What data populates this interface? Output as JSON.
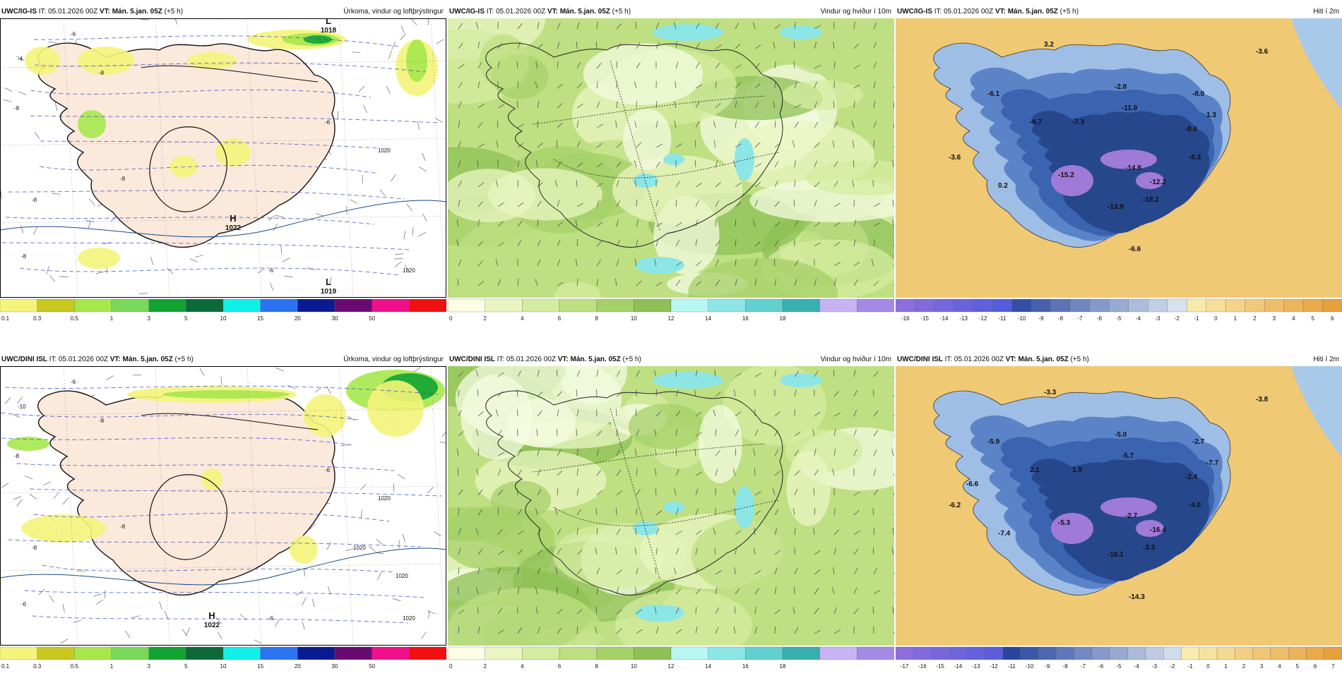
{
  "rows": [
    {
      "model": "UWC/IG-IS",
      "panels": [
        {
          "kind": "precip",
          "it_label": "IT: 05.01.2026 00Z",
          "vt_label": "VT: Mán. 5.jan. 05Z",
          "lead": "(+5 h)",
          "title": "Úrkoma, vindur og loftþrýstingur",
          "centers": [
            {
              "type": "H",
              "value": "1022"
            },
            {
              "type": "L",
              "value": "1018"
            },
            {
              "type": "L",
              "value": "1019"
            }
          ],
          "isobar_labels": [
            "1020",
            "1020"
          ],
          "temp_labels": [
            "-4",
            "-6",
            "-8",
            "-8",
            "-8",
            "-8",
            "-8",
            "-6",
            "-6"
          ],
          "legend_ticks": [
            "0.1",
            "0.3",
            "0.5",
            "1",
            "3",
            "5",
            "10",
            "15",
            "20",
            "30",
            "50"
          ],
          "legend_colors": [
            "#f4f47a",
            "#c8c81e",
            "#a6e84c",
            "#7ad85a",
            "#12a432",
            "#0c6a3a",
            "#10f0e8",
            "#2a74f2",
            "#0a1a90",
            "#6a0a70",
            "#f0108c",
            "#f01010"
          ]
        },
        {
          "kind": "wind",
          "it_label": "IT: 05.01.2026 00Z",
          "vt_label": "VT: Mán. 5.jan. 05Z",
          "lead": "(+5 h)",
          "title": "Vindur og hviður í 10m",
          "legend_ticks": [
            "0",
            "2",
            "4",
            "6",
            "8",
            "10",
            "12",
            "14",
            "16",
            "18"
          ],
          "legend_colors": [
            "#fbfde4",
            "#eaf5c2",
            "#d4eca0",
            "#bedf82",
            "#a6d068",
            "#8ec056",
            "#b8f7f2",
            "#8ce6e6",
            "#62d0d0",
            "#38b0b0",
            "#c8b4f4",
            "#a48ae6"
          ]
        },
        {
          "kind": "temp",
          "it_label": "IT: 05.01.2026 00Z",
          "vt_label": "VT: Mán. 5.jan. 05Z",
          "lead": "(+5 h)",
          "title": "Hiti í 2m",
          "values": [
            "3.2",
            "-3.6",
            "-6.1",
            "-6.7",
            "-7.3",
            "-11.9",
            "-2.8",
            "-8.0",
            "-8.6",
            "1.3",
            "-3.6",
            "0.2",
            "-15.2",
            "-14.8",
            "-12.2",
            "-8.3",
            "-13.9",
            "-18.2",
            "-6.6"
          ],
          "legend_ticks": [
            "-16",
            "-15",
            "-14",
            "-13",
            "-12",
            "-11",
            "-10",
            "-9",
            "-8",
            "-7",
            "-6",
            "-5",
            "-4",
            "-3",
            "-2",
            "-1",
            "0",
            "1",
            "2",
            "3",
            "4",
            "5",
            "6"
          ]
        }
      ]
    },
    {
      "model": "UWC/DINI ISL",
      "panels": [
        {
          "kind": "precip",
          "it_label": "IT: 05.01.2026 00Z",
          "vt_label": "VT: Mán. 5.jan. 05Z",
          "lead": "(+5 h)",
          "title": "Úrkoma, vindur og loftþrýstingur",
          "centers": [
            {
              "type": "H",
              "value": "1022"
            }
          ],
          "isobar_labels": [
            "1020",
            "1020",
            "1020",
            "1020"
          ],
          "temp_labels": [
            "-10",
            "-6",
            "-8",
            "-8",
            "-8",
            "-8",
            "-6",
            "-6",
            "-6"
          ],
          "legend_ticks": [
            "0.1",
            "0.3",
            "0.5",
            "1",
            "3",
            "5",
            "10",
            "15",
            "20",
            "30",
            "50"
          ],
          "legend_colors": [
            "#f4f47a",
            "#c8c81e",
            "#a6e84c",
            "#7ad85a",
            "#12a432",
            "#0c6a3a",
            "#10f0e8",
            "#2a74f2",
            "#0a1a90",
            "#6a0a70",
            "#f0108c",
            "#f01010"
          ]
        },
        {
          "kind": "wind",
          "it_label": "IT: 05.01.2026 00Z",
          "vt_label": "VT: Mán. 5.jan. 05Z",
          "lead": "(+5 h)",
          "title": "Vindur og hviður í 10m",
          "legend_ticks": [
            "0",
            "2",
            "4",
            "6",
            "8",
            "10",
            "12",
            "14",
            "16",
            "18"
          ],
          "legend_colors": [
            "#fbfde4",
            "#eaf5c2",
            "#d4eca0",
            "#bedf82",
            "#a6d068",
            "#8ec056",
            "#b8f7f2",
            "#8ce6e6",
            "#62d0d0",
            "#38b0b0",
            "#c8b4f4",
            "#a48ae6"
          ]
        },
        {
          "kind": "temp",
          "it_label": "IT: 05.01.2026 00Z",
          "vt_label": "VT: Mán. 5.jan. 05Z",
          "lead": "(+5 h)",
          "title": "Hiti í 2m",
          "values": [
            "-3.3",
            "-3.8",
            "-5.9",
            "2.1",
            "1.9",
            "-5.7",
            "-5.0",
            "-2.7",
            "-2.4",
            "-7.7",
            "-6.2",
            "-7.4",
            "-5.3",
            "-2.7",
            "-16.4",
            "-4.0",
            "-10.1",
            "-3.3",
            "-14.3",
            "-6.6"
          ],
          "legend_ticks": [
            "-17",
            "-16",
            "-15",
            "-14",
            "-13",
            "-12",
            "-11",
            "-10",
            "-9",
            "-8",
            "-7",
            "-6",
            "-5",
            "-4",
            "-3",
            "-2",
            "-1",
            "0",
            "1",
            "2",
            "3",
            "4",
            "5",
            "6",
            "7"
          ]
        }
      ]
    }
  ],
  "colors": {
    "land_precip": "#fbe9dc",
    "sea_precip": "#ffffff",
    "temp_sea": "#e8b75a",
    "temp_cold": "#3a64b0"
  }
}
